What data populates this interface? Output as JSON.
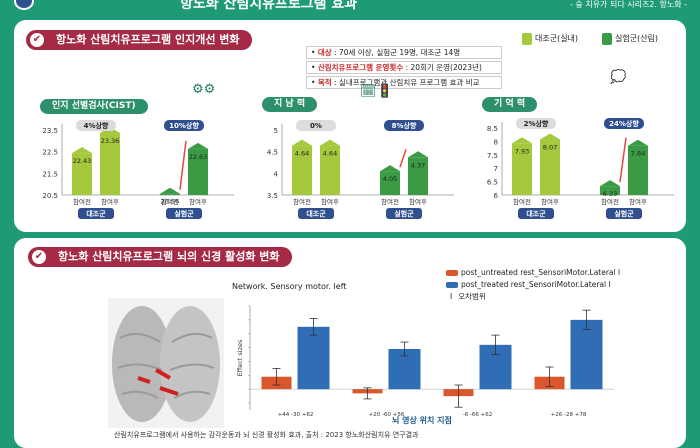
{
  "header": {
    "title": "항노화 산림치유프로그램 효과",
    "series": "- 숲 치유가 되다 시리즈2. 항노화 -"
  },
  "section1": {
    "title": "항노화 산림치유프로그램 인지개선 변화"
  },
  "section2": {
    "title": "항노화 산림치유프로그램 뇌의 신경 활성화 변화"
  },
  "info": [
    {
      "key": "대상",
      "text": " : 70세 이상, 실험군 19명, 대조군 14명"
    },
    {
      "key": "산림치유프로그램 운영횟수",
      "text": " : 20회기 운영(2023년)"
    },
    {
      "key": "목적",
      "text": " : 실내프로그램과 산림치유 프로그램 효과 비교"
    }
  ],
  "legend_top": [
    {
      "label": "대조군(실내)",
      "color": "#a5c93c"
    },
    {
      "label": "실험군(산림)",
      "color": "#3b9b44"
    }
  ],
  "colors": {
    "control": "#a5c93c",
    "experiment": "#3b9b44",
    "untreated": "#d9572a",
    "treated": "#2f6db5"
  },
  "chart_data": [
    {
      "type": "bar",
      "title": "인지 선별검사(CIST)",
      "categories": [
        "참여전",
        "참여후",
        "참여전",
        "참여후"
      ],
      "groups": [
        "대조군",
        "실험군"
      ],
      "values": [
        22.43,
        23.36,
        20.56,
        22.63
      ],
      "change_labels": [
        "4%상향",
        "10%상향"
      ],
      "yticks": [
        "23.5",
        "22.5",
        "21.5",
        "20.5"
      ],
      "ylim": [
        20.5,
        23.5
      ]
    },
    {
      "type": "bar",
      "title": "지 남 력",
      "categories": [
        "참여전",
        "참여후",
        "참여전",
        "참여후"
      ],
      "groups": [
        "대조군",
        "실험군"
      ],
      "values": [
        4.64,
        4.64,
        4.05,
        4.37
      ],
      "change_labels": [
        "0%",
        "8%상향"
      ],
      "yticks": [
        "5",
        "4.5",
        "4",
        "3.5"
      ],
      "ylim": [
        3.5,
        5
      ]
    },
    {
      "type": "bar",
      "title": "기 억 력",
      "categories": [
        "참여전",
        "참여후",
        "참여전",
        "참여후"
      ],
      "groups": [
        "대조군",
        "실험군"
      ],
      "values": [
        7.93,
        8.07,
        6.33,
        7.84
      ],
      "change_labels": [
        "2%상향",
        "24%상향"
      ],
      "yticks": [
        "8.5",
        "8",
        "7.5",
        "7",
        "6.5",
        "6"
      ],
      "ylim": [
        6,
        8.5
      ]
    },
    {
      "type": "bar",
      "title": "Network. Sensory motor. left",
      "ylabel": "Effect sizes",
      "xlabel": "뇌 영상 위치 지점",
      "categories": [
        "+44 -30 +62",
        "+20 -60 +56",
        "-6 -66 +62",
        "+26 -28 +78"
      ],
      "series": [
        {
          "name": "post_untreated rest_SensoriMotor.Lateral l",
          "values": [
            0.09,
            -0.03,
            -0.05,
            0.09
          ],
          "errors": [
            0.06,
            0.04,
            0.08,
            0.07
          ]
        },
        {
          "name": "post_treated rest_SensoriMotor.Lateral l",
          "values": [
            0.45,
            0.29,
            0.32,
            0.5
          ],
          "errors": [
            0.06,
            0.05,
            0.07,
            0.07
          ]
        }
      ],
      "error_legend": "오차범위",
      "ylim": [
        -0.15,
        0.6
      ]
    }
  ],
  "footnote": "산림치유프로그램에서 사용하는 감각운동과 뇌 신경 활성화 효과, 출처 : 2023 항노화산림치유 연구결과"
}
